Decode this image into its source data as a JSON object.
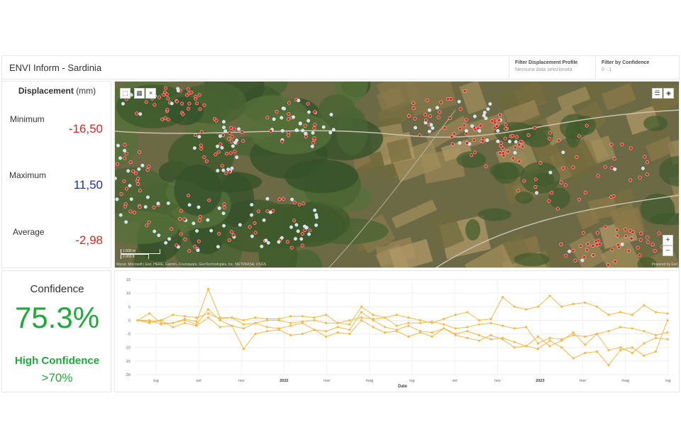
{
  "header": {
    "title": "ENVI Inform - Sardinia",
    "filters": [
      {
        "title": "Filter Displacement Profile",
        "value": "Nessuna data selezionata"
      },
      {
        "title": "Filter by Confidence",
        "value": "0 - 1"
      }
    ]
  },
  "displacement": {
    "title_bold": "Displacement",
    "title_unit": "(mm)",
    "stats": [
      {
        "label": "Minimum",
        "value": "-16,50",
        "color": "#e2261d"
      },
      {
        "label": "Maximum",
        "value": "11,50",
        "color": "#1a2fb4"
      },
      {
        "label": "Average",
        "value": "-2,98",
        "color": "#e2261d"
      }
    ]
  },
  "map": {
    "attribution": "Maxar, Microsoft | Esri, HERE, Garmin, Foursquare, GeoTechnologies, Inc, METI/NASA, USGS",
    "powered_by": "Powered by Esri",
    "scale_label_1": "1.500 m",
    "scale_label_2": "2.000 ft",
    "zoom_in": "+",
    "zoom_out": "−",
    "point_colors": {
      "negative": "#d8261e",
      "positive": "#cfe3f5"
    }
  },
  "confidence": {
    "title": "Confidence",
    "value": "75.3%",
    "level": "High Confidence",
    "threshold": ">70%",
    "color": "#1fa93a"
  },
  "chart_data": {
    "type": "line",
    "xlabel": "Date",
    "ylabel": "",
    "ylim": [
      -20,
      15
    ],
    "yticks": [
      15,
      10,
      5,
      0,
      -5,
      -10,
      -15,
      -20
    ],
    "xtick_labels": [
      "lug",
      "set",
      "nov",
      "2022",
      "mar",
      "mag",
      "lug",
      "set",
      "nov",
      "2023",
      "mar",
      "mag",
      "lug"
    ],
    "x_start": "2021-06",
    "x_end": "2023-07",
    "color": "#f5b94a",
    "grid": true,
    "series": [
      {
        "values": [
          0,
          2.5,
          -1,
          -1,
          0.5,
          -0.5,
          11.5,
          1,
          1,
          0,
          1,
          0.5,
          0.5,
          1.5,
          1.5,
          1,
          2,
          -1,
          0,
          1,
          0.5,
          1,
          2,
          1,
          0,
          -1,
          0.5,
          2,
          3,
          0,
          0.5,
          8.5,
          5,
          4,
          5,
          9,
          5,
          6,
          6.5,
          5,
          2,
          3,
          2,
          5.5,
          3,
          2.5
        ]
      },
      {
        "values": [
          0,
          -0.5,
          0,
          2,
          1.5,
          1,
          2.5,
          0.5,
          1,
          -1.5,
          -1,
          0,
          0,
          -1,
          -0.5,
          0,
          -1,
          -1,
          -1.5,
          5,
          2,
          1,
          -2,
          -1,
          -1,
          -0.5,
          -1.5,
          -3,
          -2.5,
          -1.5,
          -1,
          -2,
          -3,
          -2.5,
          -8.5,
          -6.5,
          -7,
          -5.5,
          -6,
          -5,
          -4,
          -2.5,
          -3,
          -4,
          -5.5,
          -4.5
        ]
      },
      {
        "values": [
          0,
          0,
          -1.5,
          -1,
          0,
          -1.5,
          4,
          0,
          -2,
          -3,
          -1,
          -2.5,
          -3,
          -2,
          -1,
          -3.5,
          -4,
          -2.5,
          -3.5,
          3,
          0,
          -2.5,
          -3.5,
          -2,
          -4,
          -4.5,
          -3,
          -5,
          -4,
          -5.5,
          -7,
          -6.5,
          -8,
          -9.5,
          -6,
          -9.5,
          -7.5,
          -4.5,
          -9,
          -5,
          -11,
          -10,
          -12,
          -8.5,
          -6.5,
          -7
        ]
      },
      {
        "values": [
          0,
          -1,
          0,
          -2.5,
          -1,
          -2,
          1,
          -2.5,
          -2,
          -10.5,
          -5,
          -4,
          -3.5,
          -5.5,
          -5,
          -3.5,
          -6,
          -4.5,
          -5,
          0,
          -2.5,
          -4.5,
          -4,
          -6,
          -4.5,
          -6,
          -3,
          -5.5,
          -6.5,
          -7.5,
          -5.5,
          -7,
          -10,
          -9.5,
          -10.5,
          -7.5,
          -10,
          -14,
          -12,
          -11.5,
          -16.5,
          -11,
          -10,
          -13,
          -11.5,
          0
        ]
      }
    ]
  }
}
